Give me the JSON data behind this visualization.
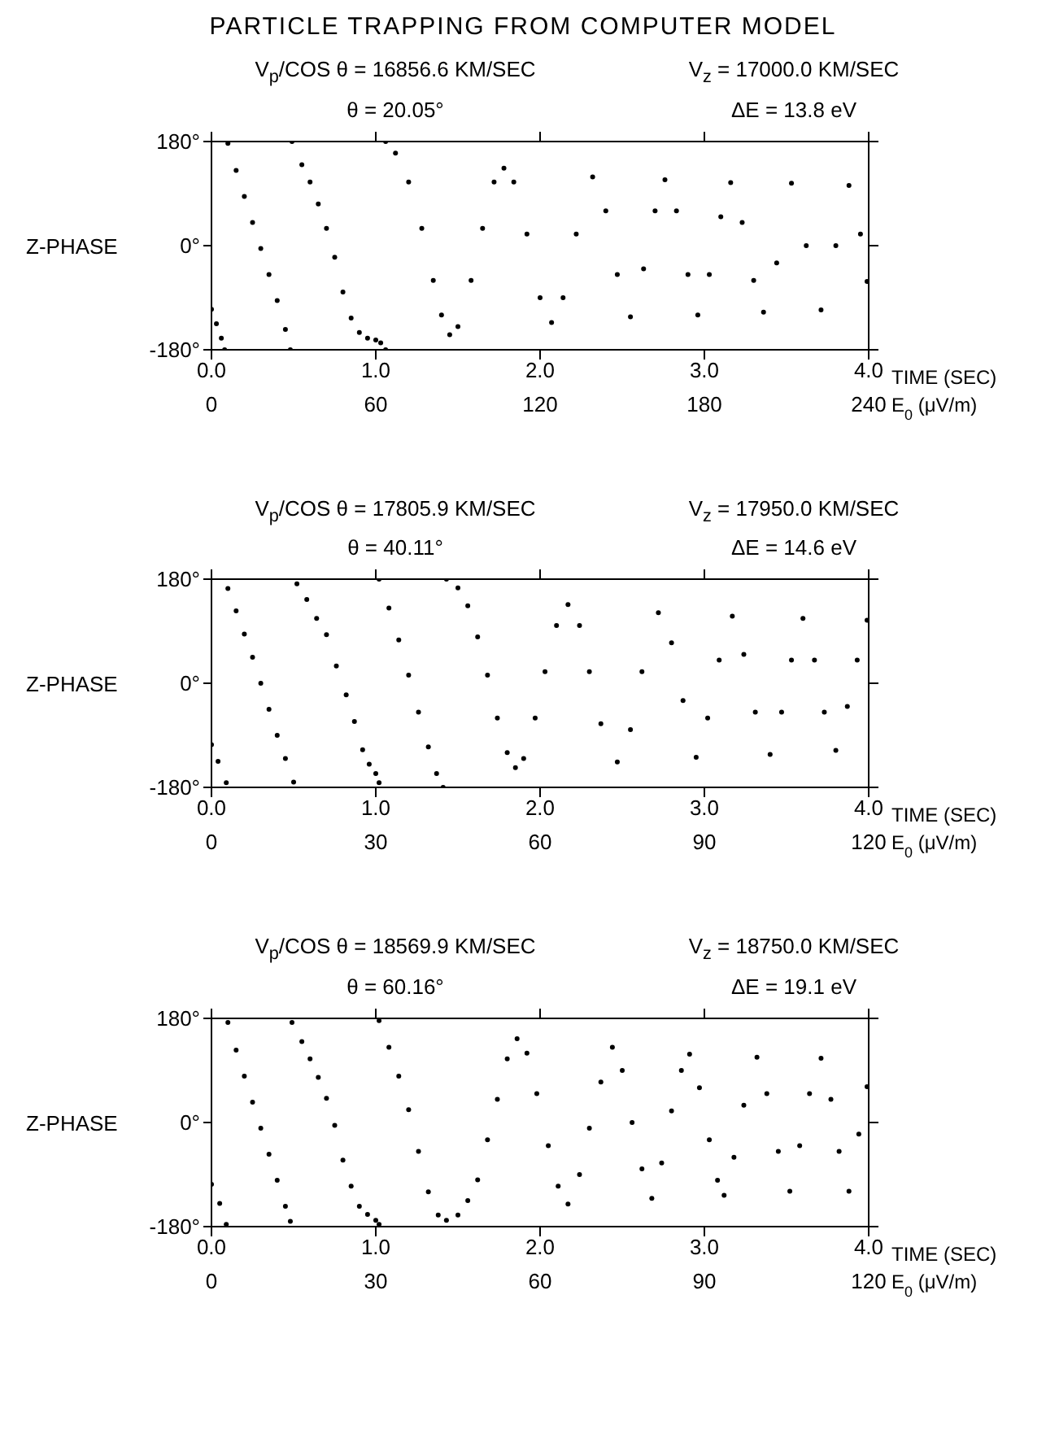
{
  "chart_data": [
    {
      "type": "scatter",
      "title": "PARTICLE TRAPPING FROM COMPUTER MODEL",
      "annotations": [
        "V$_{p}$/COS θ = 16856.6 KM/SEC",
        "V$_{z}$ = 17000.0 KM/SEC",
        "θ = 20.05°",
        "ΔE = 13.8 eV"
      ],
      "xlabel": "TIME (SEC)",
      "x2label": "E$_{0}$ (μV/m)",
      "ylabel": "Z-PHASE",
      "color": "#000000",
      "marker": "circle",
      "x": [
        0,
        0.03,
        0.06,
        0.08,
        0.1,
        0.15,
        0.2,
        0.25,
        0.3,
        0.35,
        0.4,
        0.45,
        0.48,
        0.49,
        0.55,
        0.6,
        0.65,
        0.7,
        0.75,
        0.8,
        0.85,
        0.9,
        0.95,
        1.0,
        1.03,
        1.06,
        1.06,
        1.12,
        1.2,
        1.28,
        1.35,
        1.4,
        1.45,
        1.5,
        1.58,
        1.65,
        1.72,
        1.78,
        1.84,
        1.92,
        2.0,
        2.07,
        2.14,
        2.22,
        2.32,
        2.4,
        2.47,
        2.55,
        2.63,
        2.7,
        2.76,
        2.83,
        2.9,
        2.96,
        3.03,
        3.1,
        3.16,
        3.23,
        3.3,
        3.36,
        3.44,
        3.53,
        3.62,
        3.71,
        3.8,
        3.88,
        3.95,
        3.99
      ],
      "values": [
        -110,
        -135,
        -160,
        -180,
        177,
        130,
        85,
        40,
        -5,
        -50,
        -95,
        -145,
        -180,
        180,
        140,
        110,
        72,
        30,
        -20,
        -80,
        -125,
        -150,
        -160,
        -163,
        -168,
        -180,
        180,
        160,
        110,
        30,
        -60,
        -120,
        -154,
        -140,
        -60,
        30,
        110,
        134,
        110,
        20,
        -90,
        -133,
        -90,
        20,
        119,
        60,
        -50,
        -123,
        -40,
        60,
        114,
        60,
        -50,
        -120,
        -50,
        50,
        109,
        40,
        -60,
        -115,
        -30,
        108,
        0,
        -111,
        0,
        104,
        20,
        -62
      ],
      "xlim": [
        0,
        4
      ],
      "xticks": [
        {
          "value": 0,
          "label": "0.0"
        },
        {
          "value": 1,
          "label": "1.0"
        },
        {
          "value": 2,
          "label": "2.0"
        },
        {
          "value": 3,
          "label": "3.0"
        },
        {
          "value": 4,
          "label": "4.0"
        }
      ],
      "x2lim": [
        0,
        240
      ],
      "x2ticks": [
        0,
        60,
        120,
        180,
        240
      ],
      "ylim": [
        -180,
        180
      ],
      "yticks": [
        {
          "value": -180,
          "label": "-180°"
        },
        {
          "value": 0,
          "label": "0°"
        },
        {
          "value": 180,
          "label": "180°"
        }
      ]
    },
    {
      "type": "scatter",
      "annotations": [
        "V$_{p}$/COS θ = 17805.9 KM/SEC",
        "V$_{z}$ = 17950.0 KM/SEC",
        "θ = 40.11°",
        "ΔE = 14.6 eV"
      ],
      "xlabel": "TIME (SEC)",
      "x2label": "E$_{0}$ (μV/m)",
      "ylabel": "Z-PHASE",
      "color": "#000000",
      "marker": "circle",
      "x": [
        0,
        0.04,
        0.09,
        0.1,
        0.15,
        0.2,
        0.25,
        0.3,
        0.35,
        0.4,
        0.45,
        0.5,
        0.52,
        0.58,
        0.64,
        0.7,
        0.76,
        0.82,
        0.87,
        0.92,
        0.96,
        1.0,
        1.02,
        1.02,
        1.08,
        1.14,
        1.2,
        1.26,
        1.32,
        1.37,
        1.41,
        1.43,
        1.5,
        1.56,
        1.62,
        1.68,
        1.74,
        1.8,
        1.85,
        1.9,
        1.97,
        2.03,
        2.1,
        2.17,
        2.24,
        2.3,
        2.37,
        2.47,
        2.55,
        2.62,
        2.72,
        2.8,
        2.87,
        2.95,
        3.02,
        3.09,
        3.17,
        3.24,
        3.31,
        3.4,
        3.47,
        3.53,
        3.6,
        3.67,
        3.73,
        3.8,
        3.87,
        3.93,
        3.99
      ],
      "values": [
        -106,
        -135,
        -172,
        164,
        125,
        85,
        45,
        0,
        -45,
        -90,
        -130,
        -171,
        172,
        145,
        112,
        84,
        30,
        -20,
        -66,
        -115,
        -140,
        -156,
        -172,
        180,
        130,
        75,
        14,
        -50,
        -110,
        -156,
        -180,
        180,
        165,
        134,
        80,
        14,
        -60,
        -120,
        -146,
        -130,
        -60,
        20,
        100,
        136,
        100,
        20,
        -70,
        -136,
        -80,
        20,
        122,
        70,
        -30,
        -128,
        -60,
        40,
        116,
        50,
        -50,
        -123,
        -50,
        40,
        112,
        40,
        -50,
        -116,
        -40,
        40,
        109
      ],
      "xlim": [
        0,
        4
      ],
      "xticks": [
        {
          "value": 0,
          "label": "0.0"
        },
        {
          "value": 1,
          "label": "1.0"
        },
        {
          "value": 2,
          "label": "2.0"
        },
        {
          "value": 3,
          "label": "3.0"
        },
        {
          "value": 4,
          "label": "4.0"
        }
      ],
      "x2lim": [
        0,
        120
      ],
      "x2ticks": [
        0,
        30,
        60,
        90,
        120
      ],
      "ylim": [
        -180,
        180
      ],
      "yticks": [
        {
          "value": -180,
          "label": "-180°"
        },
        {
          "value": 0,
          "label": "0°"
        },
        {
          "value": 180,
          "label": "180°"
        }
      ]
    },
    {
      "type": "scatter",
      "annotations": [
        "V$_{p}$/COS θ = 18569.9 KM/SEC",
        "V$_{z}$ = 18750.0 KM/SEC",
        "θ = 60.16°",
        "ΔE = 19.1 eV"
      ],
      "xlabel": "TIME (SEC)",
      "x2label": "E$_{0}$ (μV/m)",
      "ylabel": "Z-PHASE",
      "color": "#000000",
      "marker": "circle",
      "x": [
        0,
        0.05,
        0.09,
        0.1,
        0.15,
        0.2,
        0.25,
        0.3,
        0.35,
        0.4,
        0.45,
        0.48,
        0.49,
        0.55,
        0.6,
        0.65,
        0.7,
        0.75,
        0.8,
        0.85,
        0.9,
        0.95,
        1.0,
        1.02,
        1.02,
        1.08,
        1.14,
        1.2,
        1.26,
        1.32,
        1.38,
        1.43,
        1.5,
        1.56,
        1.62,
        1.68,
        1.74,
        1.8,
        1.86,
        1.92,
        1.98,
        2.05,
        2.11,
        2.17,
        2.24,
        2.3,
        2.37,
        2.44,
        2.5,
        2.56,
        2.62,
        2.68,
        2.74,
        2.8,
        2.86,
        2.91,
        2.97,
        3.03,
        3.08,
        3.12,
        3.18,
        3.24,
        3.32,
        3.38,
        3.45,
        3.52,
        3.58,
        3.64,
        3.71,
        3.77,
        3.82,
        3.88,
        3.94,
        3.99
      ],
      "values": [
        -107,
        -140,
        -176,
        173,
        125,
        80,
        35,
        -10,
        -55,
        -100,
        -145,
        -171,
        173,
        140,
        110,
        78,
        42,
        -5,
        -65,
        -110,
        -145,
        -159,
        -169,
        -176,
        176,
        130,
        80,
        22,
        -50,
        -120,
        -160,
        -169,
        -160,
        -135,
        -99,
        -30,
        40,
        110,
        145,
        120,
        50,
        -40,
        -110,
        -141,
        -90,
        -10,
        70,
        130,
        90,
        0,
        -80,
        -131,
        -70,
        20,
        90,
        118,
        60,
        -30,
        -100,
        -126,
        -60,
        30,
        113,
        50,
        -50,
        -119,
        -40,
        50,
        111,
        40,
        -50,
        -119,
        -20,
        62
      ],
      "xlim": [
        0,
        4
      ],
      "xticks": [
        {
          "value": 0,
          "label": "0.0"
        },
        {
          "value": 1,
          "label": "1.0"
        },
        {
          "value": 2,
          "label": "2.0"
        },
        {
          "value": 3,
          "label": "3.0"
        },
        {
          "value": 4,
          "label": "4.0"
        }
      ],
      "x2lim": [
        0,
        120
      ],
      "x2ticks": [
        0,
        30,
        60,
        90,
        120
      ],
      "ylim": [
        -180,
        180
      ],
      "yticks": [
        {
          "value": -180,
          "label": "-180°"
        },
        {
          "value": 0,
          "label": "0°"
        },
        {
          "value": 180,
          "label": "180°"
        }
      ]
    }
  ]
}
